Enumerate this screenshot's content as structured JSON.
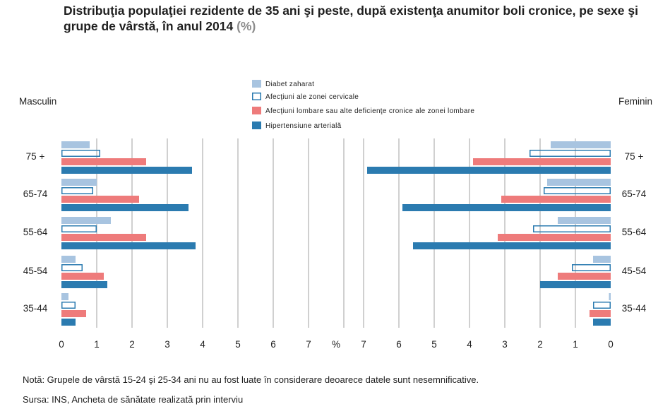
{
  "title": "Distribuţia populaţiei rezidente de 35 ani şi peste, după existenţa anumitor boli cronice, pe sexe şi grupe de vârstă, în anul 2014",
  "title_unit": "(%)",
  "note": "Notă: Grupele de vârstă 15-24 şi 25-34 ani nu au fost luate în considerare deoarece datele sunt nesemnificative.",
  "source": "Sursa: INS, Ancheta de sănătate realizată prin interviu",
  "colors": {
    "diabet": "#a8c4e0",
    "cervical_stroke": "#2b7bb0",
    "lombare": "#ee7b7b",
    "hipertensiune": "#2b7bb0",
    "grid": "#a0a0a0"
  },
  "chart_data": {
    "type": "bar",
    "orientation": "horizontal",
    "layout": "population-pyramid",
    "left_label": "Masculin",
    "right_label": "Feminin",
    "categories": [
      "75 +",
      "65-74",
      "55-64",
      "45-54",
      "35-44"
    ],
    "axis_unit_label": "%",
    "left_axis": {
      "range": [
        0,
        8
      ],
      "ticks": [
        "0",
        "1",
        "2",
        "3",
        "4",
        "5",
        "6",
        "7"
      ]
    },
    "right_axis": {
      "range": [
        0,
        7
      ],
      "ticks": [
        "7",
        "6",
        "5",
        "4",
        "3",
        "2",
        "1",
        "0"
      ]
    },
    "grid": true,
    "legend_position": "top-center",
    "series": [
      {
        "name": "Diabet zaharat",
        "style": "light-fill",
        "male": [
          0.8,
          1.0,
          1.4,
          0.4,
          0.2
        ],
        "female": [
          1.7,
          1.8,
          1.5,
          0.5,
          0.05
        ]
      },
      {
        "name": "Afecţiuni ale zonei cervicale",
        "style": "outline",
        "male": [
          1.1,
          0.9,
          1.0,
          0.6,
          0.4
        ],
        "female": [
          2.3,
          1.9,
          2.2,
          1.1,
          0.5
        ]
      },
      {
        "name": "Afecţiuni lombare sau alte deficienţe cronice ale zonei lombare",
        "style": "red-fill",
        "male": [
          2.4,
          2.2,
          2.4,
          1.2,
          0.7
        ],
        "female": [
          3.9,
          3.1,
          3.2,
          1.5,
          0.6
        ]
      },
      {
        "name": "Hipertensiune arterială",
        "style": "dark-fill",
        "male": [
          3.7,
          3.6,
          3.8,
          1.3,
          0.4
        ],
        "female": [
          6.9,
          5.9,
          5.6,
          2.0,
          0.5
        ]
      }
    ]
  }
}
